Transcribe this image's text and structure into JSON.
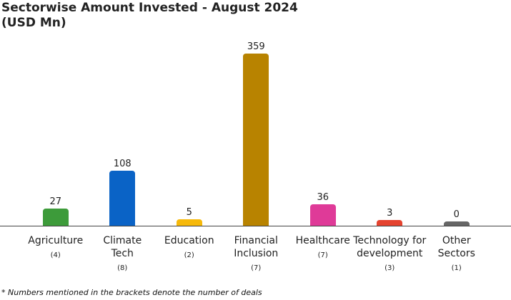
{
  "chart_data": {
    "type": "bar",
    "title": "Sectorwise Amount Invested - August 2024",
    "subtitle": "(USD Mn)",
    "categories": [
      "Agriculture",
      "Climate\nTech",
      "Education",
      "Financial\nInclusion",
      "Healthcare",
      "Technology for\ndevelopment",
      "Other\nSectors"
    ],
    "deal_counts": [
      "(4)",
      "(8)",
      "(2)",
      "(7)",
      "(7)",
      "(3)",
      "(1)"
    ],
    "values": [
      27,
      108,
      5,
      359,
      36,
      3,
      0
    ],
    "colors": [
      "#3d9b3a",
      "#0a63c6",
      "#f6b90a",
      "#b88300",
      "#df3a98",
      "#e5432f",
      "#666666"
    ],
    "footnote": "* Numbers mentioned in the brackets denote the number of deals"
  }
}
